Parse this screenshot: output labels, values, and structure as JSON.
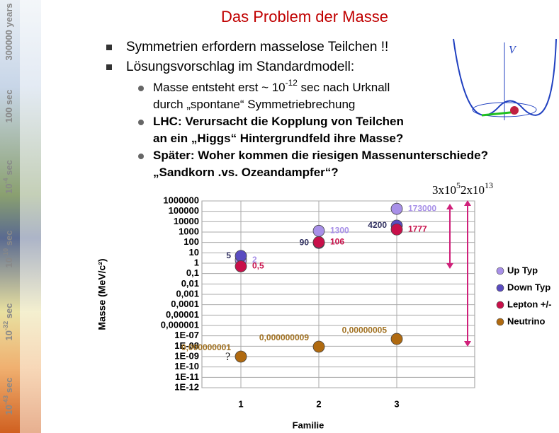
{
  "slide": {
    "title": "Das Problem der Masse",
    "bullets": [
      "Symmetrien erfordern masselose Teilchen !!",
      "Lösungsvorschlag im Standardmodell:"
    ],
    "sub_bullets": [
      {
        "lines": [
          {
            "text": "Masse entsteht erst ~ 10",
            "sup": "-12",
            "rest": " sec nach Urknall"
          },
          {
            "text": "durch „spontane“ Symmetriebrechung"
          }
        ]
      },
      {
        "lines": [
          {
            "text": "LHC: Verursacht die Kopplung von Teilchen"
          },
          {
            "text": "an ein „Higgs“ Hintergrundfeld ihre Masse?"
          }
        ]
      },
      {
        "lines": [
          {
            "text": "Später: Woher kommen die riesigen Massenunterschiede?"
          },
          {
            "text": "„Sandkorn .vs. Ozeandampfer“?"
          }
        ]
      }
    ],
    "timeline": [
      {
        "text": "300000 years"
      },
      {
        "text": "100 sec"
      },
      {
        "text": "10",
        "sup": "-4",
        "rest": " sec"
      },
      {
        "text": "10",
        "sup": "-10",
        "rest": " sec"
      },
      {
        "text": "10",
        "sup": "-32",
        "rest": " sec"
      },
      {
        "text": "10",
        "sup": "-43",
        "rest": " sec"
      }
    ],
    "potential_label": "V"
  },
  "chart_data": {
    "type": "scatter",
    "log_y": true,
    "ylabel": "Masse (MeV/c²)",
    "xlabel": "Familie",
    "xlim": [
      0.5,
      4
    ],
    "xticks": [
      1,
      2,
      3
    ],
    "ylim": [
      1e-12,
      1000000
    ],
    "yticks": [
      1000000,
      100000,
      10000,
      1000,
      100,
      10,
      1,
      {
        "value": 0.1,
        "label": "0,1"
      },
      {
        "value": 0.01,
        "label": "0,01"
      },
      {
        "value": 0.001,
        "label": "0,001"
      },
      {
        "value": 0.0001,
        "label": "0,0001"
      },
      {
        "value": 1e-05,
        "label": "0,00001"
      },
      {
        "value": 1e-06,
        "label": "0,000001"
      },
      {
        "value": 1e-07,
        "label": "1E-07"
      },
      {
        "value": 1e-08,
        "label": "1E-08"
      },
      {
        "value": 1e-09,
        "label": "1E-09"
      },
      {
        "value": 1e-10,
        "label": "1E-10"
      },
      {
        "value": 1e-11,
        "label": "1E-11"
      },
      {
        "value": 1e-12,
        "label": "1E-12"
      }
    ],
    "grid": true,
    "legend": "right",
    "x": [
      1,
      2,
      3
    ],
    "series": [
      {
        "name": "Up Typ",
        "color": "#a890e8",
        "values": [
          2,
          1300,
          173000
        ],
        "value_labels": [
          "2",
          "1300",
          "173000"
        ]
      },
      {
        "name": "Down Typ",
        "color": "#5a4cc0",
        "values": [
          5,
          90,
          4200
        ],
        "value_labels": [
          "5",
          "90",
          "4200"
        ]
      },
      {
        "name": "Lepton +/-",
        "color": "#c8104a",
        "values": [
          0.5,
          106,
          1777
        ],
        "value_labels": [
          "0,5",
          "106",
          "1777"
        ]
      },
      {
        "name": "Neutrino",
        "color": "#b06a10",
        "values": [
          1e-09,
          9e-09,
          5e-08
        ],
        "value_labels": [
          "0,000000001",
          "0,000000009",
          "0,00000005"
        ]
      }
    ],
    "annotations": [
      {
        "text": "3x10",
        "sup": "5"
      },
      {
        "text": "2x10",
        "sup": "13"
      },
      {
        "text": "?"
      }
    ]
  }
}
